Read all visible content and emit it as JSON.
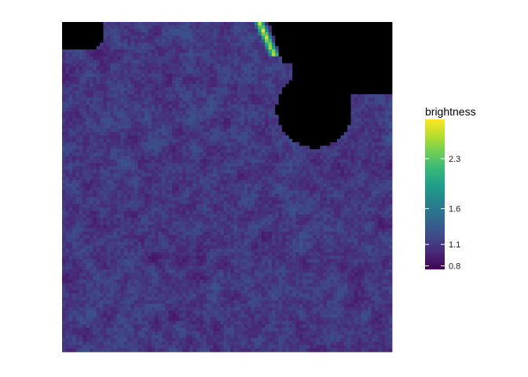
{
  "chart_data": {
    "type": "heatmap",
    "title": "",
    "xlabel": "",
    "ylabel": "",
    "grid": false,
    "colormap": "viridis",
    "grid_size": [
      96,
      96
    ],
    "value_range": [
      0.75,
      2.85
    ],
    "typical_range": [
      0.8,
      1.6
    ],
    "missing_regions": "black, top-left corner and a large notch along the top-right edge",
    "legend": {
      "title": "brightness",
      "placement": "right",
      "ticks": [
        0.8,
        1.1,
        1.6,
        2.3
      ]
    },
    "colors": {
      "missing": "#000000",
      "viridis_stops": [
        "#440154",
        "#482878",
        "#3e4a89",
        "#31688e",
        "#26828e",
        "#1f9e89",
        "#35b779",
        "#6dcd59",
        "#b4de2c",
        "#fde725"
      ]
    }
  }
}
